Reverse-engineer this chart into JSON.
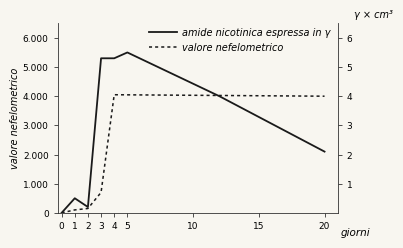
{
  "solid_line": {
    "x": [
      0,
      1,
      2,
      3,
      4,
      5,
      12,
      20
    ],
    "y": [
      0,
      500,
      200,
      5300,
      5300,
      5500,
      4000,
      2100
    ],
    "label": "amide nicotinica espressa in γ",
    "color": "#1a1a1a",
    "linewidth": 1.3
  },
  "dashed_line": {
    "x": [
      0,
      1,
      2,
      3,
      4,
      20
    ],
    "y": [
      0,
      100,
      150,
      700,
      4050,
      4000
    ],
    "label": "valore nefelometrico",
    "color": "#1a1a1a",
    "linewidth": 1.1
  },
  "left_ylabel": "valore nefelometrico",
  "right_ylabel": "γ × cm³",
  "xlabel": "giorni",
  "left_yticks": [
    0,
    1000,
    2000,
    3000,
    4000,
    5000,
    6000
  ],
  "left_yticklabels": [
    "0",
    "1.000",
    "2.000",
    "3.000",
    "4.000",
    "5.000",
    "6.000"
  ],
  "right_yticks": [
    1000,
    2000,
    3000,
    4000,
    5000,
    6000
  ],
  "right_yticklabels": [
    "1",
    "2",
    "3",
    "4",
    "5",
    "6"
  ],
  "xticks": [
    0,
    1,
    2,
    3,
    4,
    5,
    10,
    15,
    20
  ],
  "xlim": [
    -0.3,
    21
  ],
  "ylim": [
    0,
    6500
  ],
  "background_color": "#f8f6f0",
  "legend_fontsize": 7.0,
  "tick_fontsize": 6.5,
  "ylabel_fontsize": 7.0,
  "xlabel_fontsize": 7.5
}
